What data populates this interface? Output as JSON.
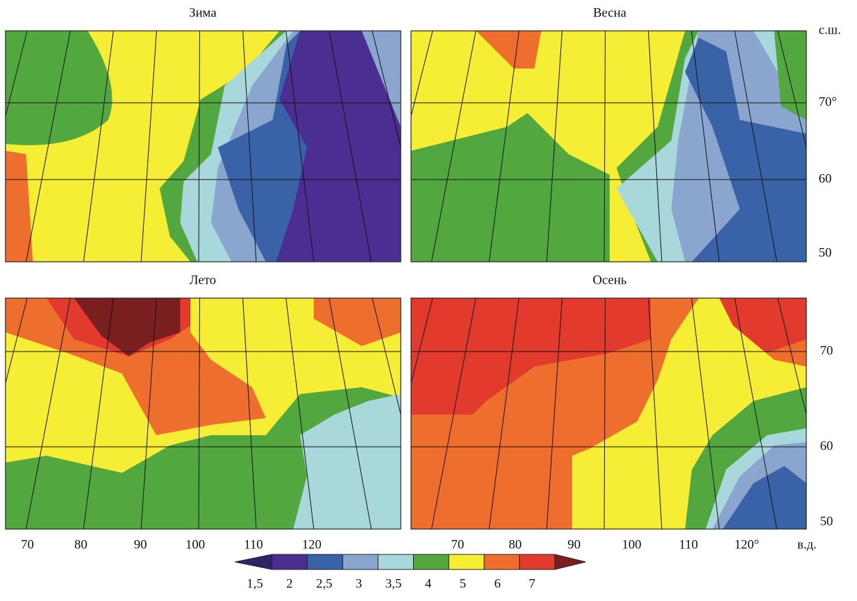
{
  "panels": [
    {
      "title": "Зима"
    },
    {
      "title": "Весна"
    },
    {
      "title": "Лето"
    },
    {
      "title": "Осень"
    }
  ],
  "latitude_labels": {
    "top": [
      "с.ш.",
      "70°",
      "60",
      "50"
    ],
    "bottom": [
      "70",
      "60",
      "50"
    ]
  },
  "longitude_labels": {
    "left": [
      "70",
      "80",
      "90",
      "100",
      "110",
      "120"
    ],
    "right": [
      "70",
      "80",
      "90",
      "100",
      "110",
      "120°",
      "в.д."
    ]
  },
  "colorbar": {
    "labels": [
      "1,5",
      "2",
      "2,5",
      "3",
      "3,5",
      "4",
      "5",
      "6",
      "7"
    ],
    "colors": [
      "#2e2365",
      "#4b2e91",
      "#3a62a6",
      "#8aa6cf",
      "#a9d8dc",
      "#52a83e",
      "#f5ee35",
      "#ee6f2d",
      "#e23a2c",
      "#7a1f1f"
    ]
  }
}
